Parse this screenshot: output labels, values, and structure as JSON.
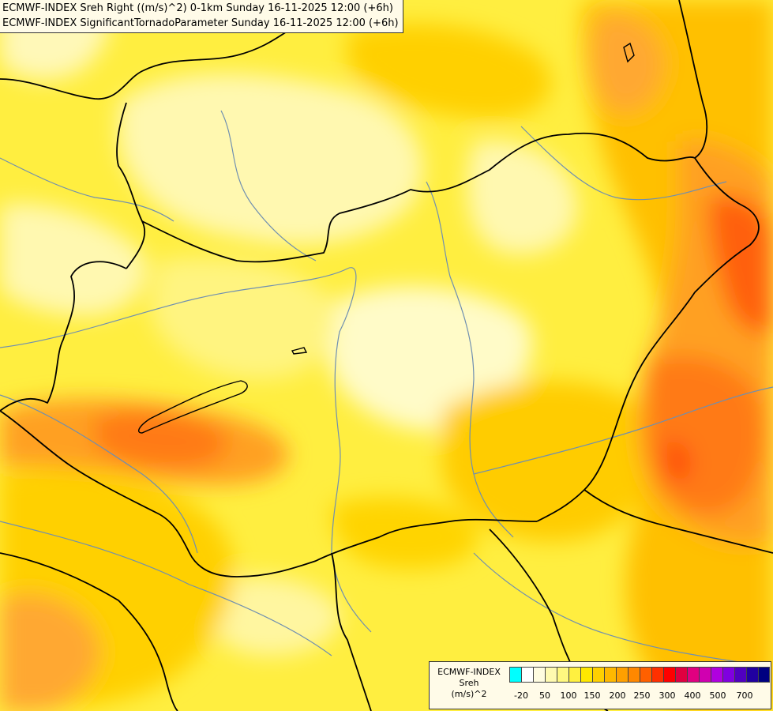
{
  "header": {
    "line1": "ECMWF-INDEX Sreh Right ((m/s)^2) 0-1km Sunday 16-11-2025 12:00 (+6h)",
    "line2": "ECMWF-INDEX SignificantTornadoParameter Sunday 16-11-2025 12:00 (+6h)"
  },
  "legend": {
    "title_line1": "ECMWF-INDEX",
    "title_line2": "Sreh",
    "title_line3": "(m/s)^2",
    "swatch_colors": [
      "#00ffff",
      "#ffffff",
      "#fffce0",
      "#fffab0",
      "#fff880",
      "#fff040",
      "#ffe800",
      "#ffd000",
      "#ffb800",
      "#ffa000",
      "#ff8800",
      "#ff6000",
      "#ff3000",
      "#ff0000",
      "#e00040",
      "#e00080",
      "#d000b0",
      "#b000e0",
      "#8000e0",
      "#5000c0",
      "#2000a0",
      "#000080"
    ],
    "tick_labels": [
      "-20",
      "50",
      "100",
      "150",
      "200",
      "250",
      "300",
      "400",
      "500",
      "700"
    ]
  },
  "colors": {
    "base": "#ffee40",
    "pale": "#fffbc0",
    "light": "#fff680",
    "yellow": "#ffe000",
    "gold": "#ffc000",
    "orange": "#ffa020",
    "deep_orange": "#ff7a18",
    "red_orange": "#ff5a10",
    "border_line": "#000000",
    "river_line": "#6f8fb0"
  }
}
